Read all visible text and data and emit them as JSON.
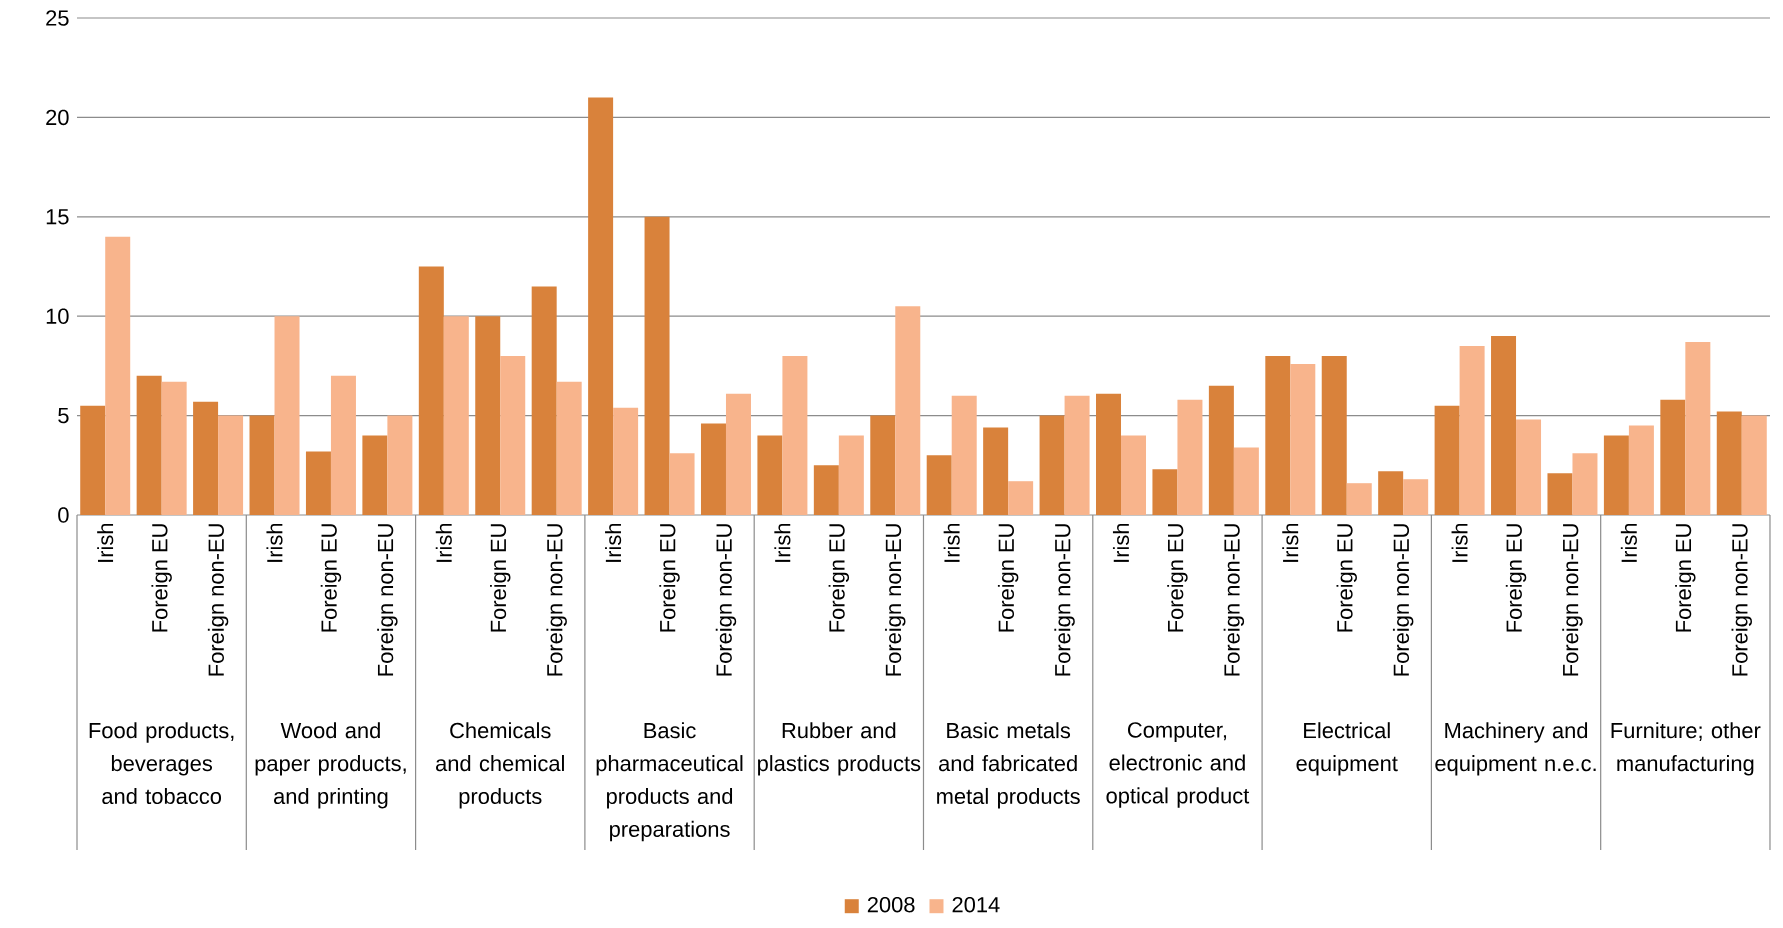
{
  "chart_data": {
    "type": "bar",
    "categories": [
      "Irish",
      "Foreign EU",
      "Foreign non-EU",
      "Irish",
      "Foreign EU",
      "Foreign non-EU",
      "Irish",
      "Foreign EU",
      "Foreign non-EU",
      "Irish",
      "Foreign EU",
      "Foreign non-EU",
      "Irish",
      "Foreign EU",
      "Foreign non-EU",
      "Irish",
      "Foreign EU",
      "Foreign non-EU",
      "Irish",
      "Foreign EU",
      "Foreign non-EU",
      "Irish",
      "Foreign EU",
      "Foreign non-EU",
      "Irish",
      "Foreign EU",
      "Foreign non-EU",
      "Irish",
      "Foreign EU",
      "Foreign non-EU"
    ],
    "series": [
      {
        "name": "2008",
        "color": "#d9823b",
        "values": [
          5.5,
          7,
          5.7,
          5,
          3.2,
          4,
          12.5,
          10,
          11.5,
          21,
          15,
          4.6,
          4,
          2.5,
          5,
          3,
          4.4,
          5,
          6.1,
          2.3,
          6.5,
          8,
          8,
          2.2,
          5.5,
          9,
          2.1,
          4,
          5.8,
          5.2
        ]
      },
      {
        "name": "2014",
        "color": "#f8b48c",
        "values": [
          14,
          6.7,
          5,
          10,
          7,
          5,
          10,
          8,
          6.7,
          5.4,
          3.1,
          6.1,
          8,
          4,
          10.5,
          6,
          1.7,
          6,
          4,
          5.8,
          3.4,
          7.6,
          1.6,
          1.8,
          8.5,
          4.8,
          3.1,
          4.5,
          8.7,
          5
        ]
      }
    ],
    "annotations": [
      "Food products, beverages and tobacco",
      "Wood and paper products, and printing",
      "Chemicals and chemical products",
      "Basic pharmaceutical products and preparations",
      "Rubber and plastics products",
      "Basic metals and fabricated metal products",
      "Computer, electronic and optical product",
      "Electrical equipment",
      "Machinery and equipment n.e.c.",
      "Furniture; other manufacturing"
    ],
    "ylim": [
      0,
      25
    ],
    "yticks": [
      0,
      5,
      10,
      15,
      20,
      25
    ],
    "grid": "y",
    "legend": "bottom"
  }
}
